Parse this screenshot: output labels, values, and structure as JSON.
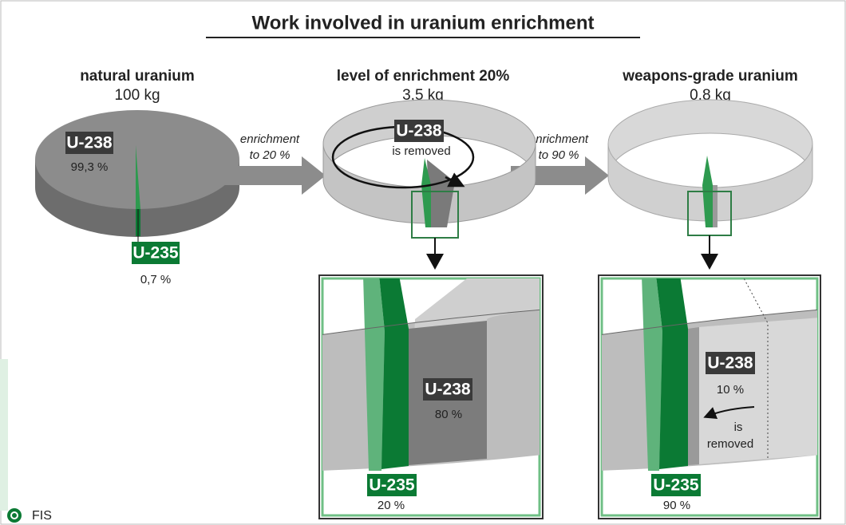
{
  "title": "Work involved in uranium enrichment",
  "stages": [
    {
      "name": "natural uranium",
      "amount": "100 kg",
      "u238": "U-238",
      "u238_share": "99,3 %",
      "u235": "U-235",
      "u235_share": "0,7 %"
    },
    {
      "name": "level of enrichment 20%",
      "amount": "3,5 kg",
      "u238": "U-238",
      "note": "is removed"
    },
    {
      "name": "weapons-grade uranium",
      "amount": "0,8 kg"
    }
  ],
  "steps": [
    {
      "line1": "enrichment",
      "line2": "to 20 %"
    },
    {
      "line1": "enrichment",
      "line2": "to 90 %"
    }
  ],
  "zooms": [
    {
      "u238": "U-238",
      "u238_share": "80 %",
      "u235": "U-235",
      "u235_share": "20 %"
    },
    {
      "u238": "U-238",
      "u238_share": "10 %",
      "note1": "is",
      "note2": "removed",
      "u235": "U-235",
      "u235_share": "90 %"
    }
  ],
  "footer": "FIS"
}
